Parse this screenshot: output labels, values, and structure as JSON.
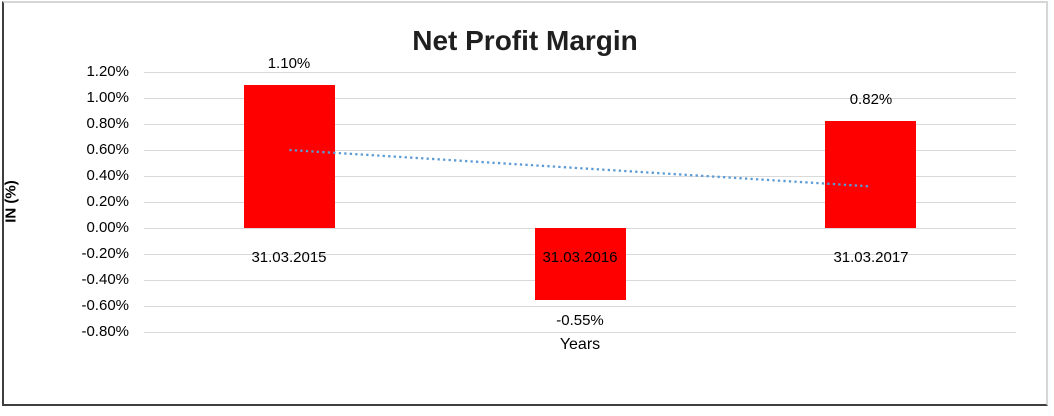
{
  "chart_data": {
    "type": "bar",
    "title": "Net Profit Margin",
    "xlabel": "Years",
    "ylabel": "IN (%)",
    "categories": [
      "31.03.2015",
      "31.03.2016",
      "31.03.2017"
    ],
    "values": [
      1.1,
      -0.55,
      0.82
    ],
    "value_labels": [
      "1.10%",
      "-0.55%",
      "0.82%"
    ],
    "ylim": [
      -0.8,
      1.2
    ],
    "ytick_step": 0.2,
    "ytick_labels": [
      "1.20%",
      "1.00%",
      "0.80%",
      "0.60%",
      "0.40%",
      "0.20%",
      "0.00%",
      "-0.20%",
      "-0.40%",
      "-0.60%",
      "-0.80%"
    ],
    "bar_color": "#ff0000",
    "grid_color": "#d9d9d9",
    "grid": true,
    "legend": false,
    "trendline": {
      "type": "linear",
      "style": "dotted",
      "color": "#5b9bd5",
      "start_value": 0.6,
      "end_value": 0.32
    }
  }
}
